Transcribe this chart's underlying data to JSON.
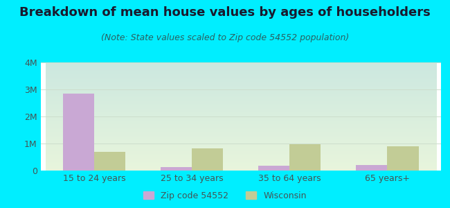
{
  "title": "Breakdown of mean house values by ages of householders",
  "subtitle": "(Note: State values scaled to Zip code 54552 population)",
  "categories": [
    "15 to 24 years",
    "25 to 34 years",
    "35 to 64 years",
    "65 years+"
  ],
  "zip_values": [
    2850000,
    130000,
    180000,
    200000
  ],
  "wi_values": [
    680000,
    820000,
    970000,
    900000
  ],
  "zip_color": "#c9a8d4",
  "wi_color": "#c2cc96",
  "outer_bg": "#00eeff",
  "ylim": [
    0,
    4000000
  ],
  "yticks": [
    0,
    1000000,
    2000000,
    3000000,
    4000000
  ],
  "ytick_labels": [
    "0",
    "1M",
    "2M",
    "3M",
    "4M"
  ],
  "bar_width": 0.32,
  "legend_zip_label": "Zip code 54552",
  "legend_wi_label": "Wisconsin",
  "title_fontsize": 13,
  "subtitle_fontsize": 9,
  "tick_fontsize": 9,
  "legend_fontsize": 9,
  "title_color": "#1a1a2e",
  "subtitle_color": "#2a6060",
  "tick_color": "#445555"
}
